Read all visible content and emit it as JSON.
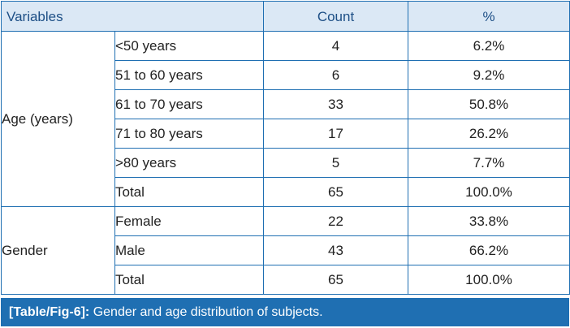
{
  "table": {
    "headers": {
      "variables": "Variables",
      "count": "Count",
      "percent": "%"
    },
    "groups": [
      {
        "name": "Age (years)",
        "rows": [
          {
            "label": "<50 years",
            "count": "4",
            "percent": "6.2%"
          },
          {
            "label": "51 to 60 years",
            "count": "6",
            "percent": "9.2%"
          },
          {
            "label": "61 to 70 years",
            "count": "33",
            "percent": "50.8%"
          },
          {
            "label": "71 to 80 years",
            "count": "17",
            "percent": "26.2%"
          },
          {
            "label": ">80 years",
            "count": "5",
            "percent": "7.7%"
          },
          {
            "label": "Total",
            "count": "65",
            "percent": "100.0%"
          }
        ]
      },
      {
        "name": "Gender",
        "rows": [
          {
            "label": "Female",
            "count": "22",
            "percent": "33.8%"
          },
          {
            "label": "Male",
            "count": "43",
            "percent": "66.2%"
          },
          {
            "label": "Total",
            "count": "65",
            "percent": "100.0%"
          }
        ]
      }
    ]
  },
  "caption": {
    "label": "[Table/Fig-6]:",
    "text": " Gender and age distribution of subjects."
  },
  "colors": {
    "border": "#1f6fb2",
    "header_bg": "#dbe8f5",
    "header_text": "#1d4f86",
    "caption_bg": "#1f6fb2"
  }
}
